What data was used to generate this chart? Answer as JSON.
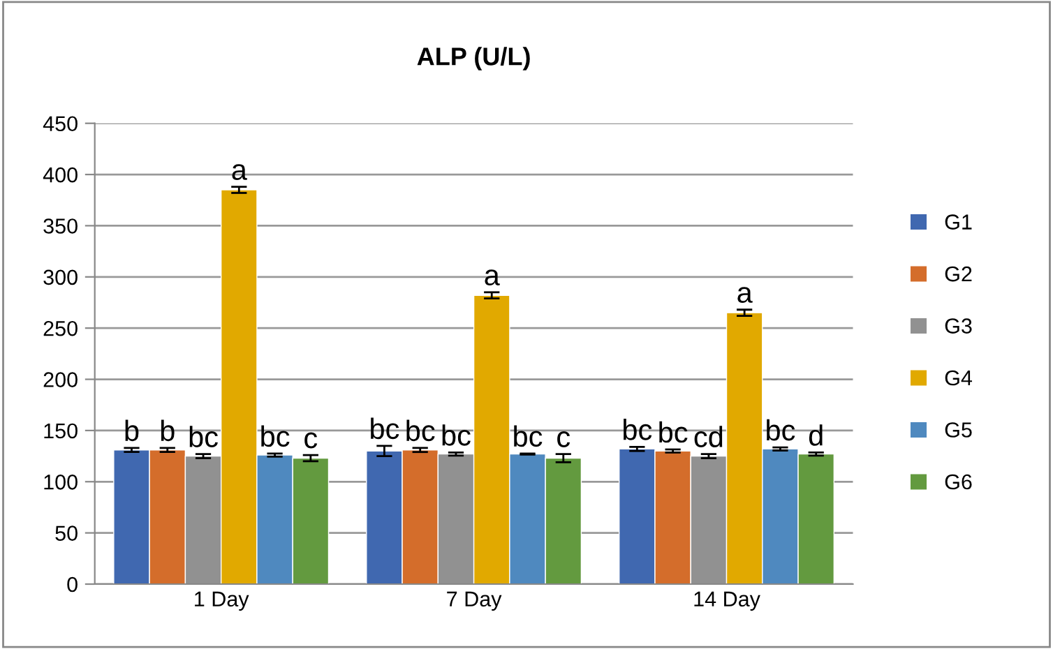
{
  "chart_data": {
    "type": "bar",
    "title": "ALP (U/L)",
    "categories": [
      "1 Day",
      "7 Day",
      "14 Day"
    ],
    "series": [
      {
        "name": "G1",
        "color": "#4068b0",
        "values": [
          131,
          130,
          132
        ],
        "errors": [
          2,
          5,
          2
        ],
        "value_labels": [
          "b",
          "bc",
          "bc"
        ]
      },
      {
        "name": "G2",
        "color": "#d46d2b",
        "values": [
          131,
          131,
          130
        ],
        "errors": [
          2,
          2,
          1.5
        ],
        "value_labels": [
          "b",
          "bc",
          "bc"
        ]
      },
      {
        "name": "G3",
        "color": "#919191",
        "values": [
          125,
          127,
          125
        ],
        "errors": [
          2,
          1.5,
          2
        ],
        "value_labels": [
          "bc",
          "bc",
          "cd"
        ]
      },
      {
        "name": "G4",
        "color": "#e1a900",
        "values": [
          385,
          282,
          265
        ],
        "errors": [
          3,
          3,
          3
        ],
        "value_labels": [
          "a",
          "a",
          "a"
        ]
      },
      {
        "name": "G5",
        "color": "#4f89bf",
        "values": [
          126,
          127,
          132
        ],
        "errors": [
          1.5,
          0.5,
          1.5
        ],
        "value_labels": [
          "bc",
          "bc",
          "bc"
        ]
      },
      {
        "name": "G6",
        "color": "#639a3f",
        "values": [
          123,
          123,
          127
        ],
        "errors": [
          3,
          4,
          1.5
        ],
        "value_labels": [
          "c",
          "c",
          "d"
        ]
      }
    ],
    "ylim": [
      0,
      450
    ],
    "yticks": [
      0,
      50,
      100,
      150,
      200,
      250,
      300,
      350,
      400,
      450
    ],
    "grid": "y",
    "legend": "right"
  }
}
